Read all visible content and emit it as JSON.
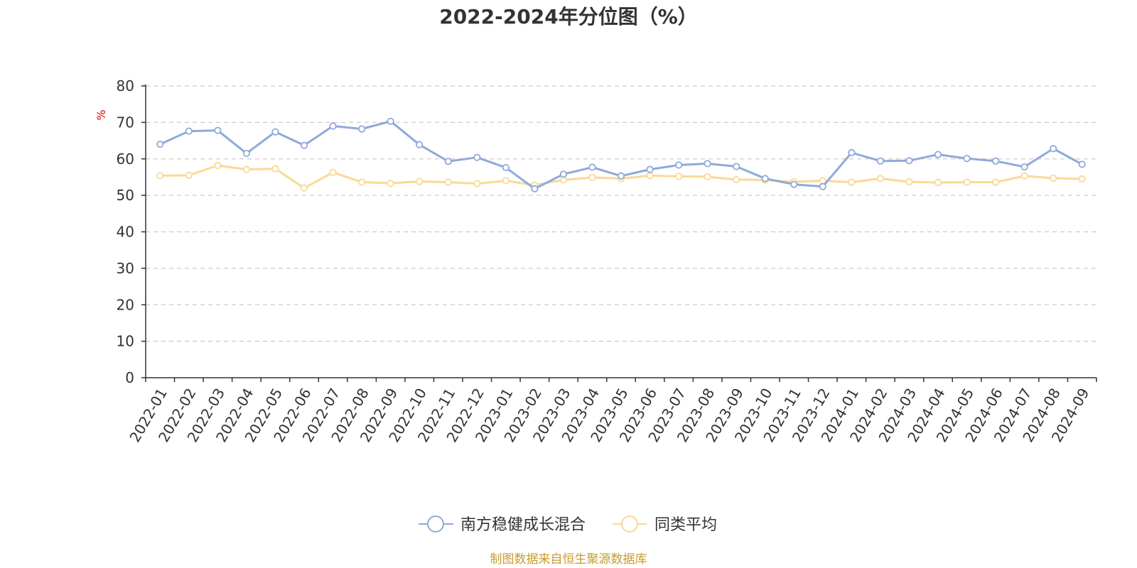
{
  "chart_data": {
    "type": "line",
    "title": "2022-2024年分位图（%）",
    "ylabel": "%",
    "xlabel": "",
    "ylim": [
      0,
      80
    ],
    "yticks": [
      0,
      10,
      20,
      30,
      40,
      50,
      60,
      70,
      80
    ],
    "grid": true,
    "legend_position": "bottom-center",
    "categories": [
      "2022-01",
      "2022-02",
      "2022-03",
      "2022-04",
      "2022-05",
      "2022-06",
      "2022-07",
      "2022-08",
      "2022-09",
      "2022-10",
      "2022-11",
      "2022-12",
      "2023-01",
      "2023-02",
      "2023-03",
      "2023-04",
      "2023-05",
      "2023-06",
      "2023-07",
      "2023-08",
      "2023-09",
      "2023-10",
      "2023-11",
      "2023-12",
      "2024-01",
      "2024-02",
      "2024-03",
      "2024-04",
      "2024-05",
      "2024-06",
      "2024-07",
      "2024-08",
      "2024-09"
    ],
    "series": [
      {
        "name": "南方稳健成长混合",
        "color": "#8eaadb",
        "values": [
          64.0,
          67.6,
          67.8,
          61.5,
          67.4,
          63.7,
          69.0,
          68.2,
          70.3,
          63.9,
          59.3,
          60.4,
          57.6,
          51.8,
          55.8,
          57.7,
          55.3,
          57.1,
          58.3,
          58.7,
          57.9,
          54.6,
          53.0,
          52.4,
          61.7,
          59.4,
          59.5,
          61.2,
          60.1,
          59.4,
          57.8,
          62.8,
          58.5
        ]
      },
      {
        "name": "同类平均",
        "color": "#fad996",
        "values": [
          55.4,
          55.5,
          58.2,
          57.1,
          57.3,
          52.0,
          56.3,
          53.6,
          53.3,
          53.8,
          53.6,
          53.2,
          54.0,
          52.8,
          54.2,
          54.9,
          54.6,
          55.4,
          55.2,
          55.1,
          54.3,
          54.2,
          53.7,
          54.0,
          53.6,
          54.6,
          53.7,
          53.5,
          53.6,
          53.6,
          55.3,
          54.7,
          54.5
        ]
      }
    ]
  },
  "colors": {
    "axis": "#333333",
    "grid": "#cccccc",
    "ylabel": "#e60000",
    "source": "#c99a2e"
  },
  "source_text": "制图数据来自恒生聚源数据库"
}
